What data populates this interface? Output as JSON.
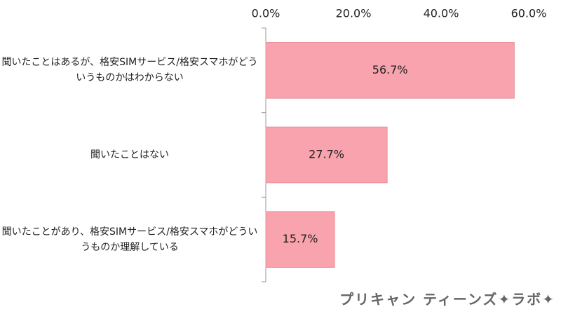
{
  "chart_data": {
    "type": "bar",
    "orientation": "horizontal",
    "categories": [
      "聞いたことはあるが、格安SIMサービス/格安スマホがどういうものかはわからない",
      "聞いたことはない",
      "聞いたことがあり、格安SIMサービス/格安スマホがどういうものか理解している"
    ],
    "values": [
      56.7,
      27.7,
      15.7
    ],
    "value_labels": [
      "56.7%",
      "27.7%",
      "15.7%"
    ],
    "color": "#f8a3ad",
    "xlim": [
      0,
      60
    ],
    "xticks": [
      {
        "value": 0,
        "label": "0.0%"
      },
      {
        "value": 20,
        "label": "20.0%"
      },
      {
        "value": 40,
        "label": "40.0%"
      },
      {
        "value": 60,
        "label": "60.0%"
      }
    ],
    "grid": false
  },
  "logo": "プリキャン ティーンズ✦ラボ✦"
}
